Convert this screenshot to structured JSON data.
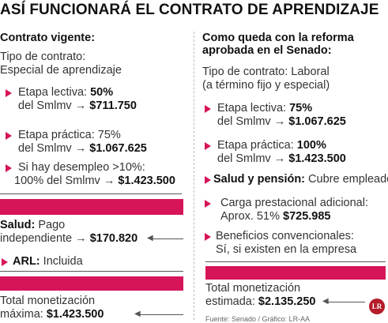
{
  "title": "ASÍ FUNCIONARÁ EL CONTRATO DE APRENDIZAJE",
  "left": {
    "heading": "Contrato vigente:",
    "type_label": "Tipo de contrato:",
    "type_value": "Especial de aprendizaje",
    "etapa_lectiva": {
      "label": "Etapa lectiva:",
      "pct": "50%",
      "line2": "del Smlmv →",
      "amount": "$711.750"
    },
    "etapa_practica": {
      "label": "Etapa práctica: 75%",
      "line2": "del Smlmv →",
      "amount": "$1.067.625"
    },
    "desempleo": {
      "line1": "Si hay desempleo >10%:",
      "line2": "100% del Smlmv →",
      "amount": "$1.423.500"
    },
    "salud": {
      "label": "Salud:",
      "line1_rest": " Pago",
      "line2": "independiente →",
      "amount": "$170.820"
    },
    "arl": {
      "label": "ARL:",
      "value": " Incluida"
    },
    "total": {
      "line1": "Total monetización",
      "line2_label": "máxima:",
      "amount": "$1.423.500"
    }
  },
  "right": {
    "heading_line1": "Como queda con la reforma",
    "heading_line2": "aprobada en el Senado:",
    "type_line1": "Tipo de contrato: Laboral",
    "type_line2": "(a término fijo y especial)",
    "etapa_lectiva": {
      "label": "Etapa lectiva:",
      "pct": "75%",
      "line2": "del Smlmv →",
      "amount": "$1.067.625"
    },
    "etapa_practica": {
      "label": "Etapa práctica:",
      "pct": "100%",
      "line2": "del Smlmv →",
      "amount": "$1.423.500"
    },
    "salud": {
      "label": "Salud y pensión:",
      "value": " Cubre empleador"
    },
    "carga": {
      "line1": "Carga prestacional adicional:",
      "line2": "Aprox. 51%",
      "amount": "$725.985"
    },
    "beneficios": {
      "label": "Beneficios convencionales:",
      "line2": "Sí, si existen en la empresa"
    },
    "total": {
      "line1": "Total monetización",
      "line2_label": "estimada:",
      "amount": "$2.135.250"
    }
  },
  "source": "Fuente: Senado / Gráfico: LR-AA",
  "logo": "LR",
  "colors": {
    "accent": "#d6145a",
    "logo": "#b51c2a"
  }
}
